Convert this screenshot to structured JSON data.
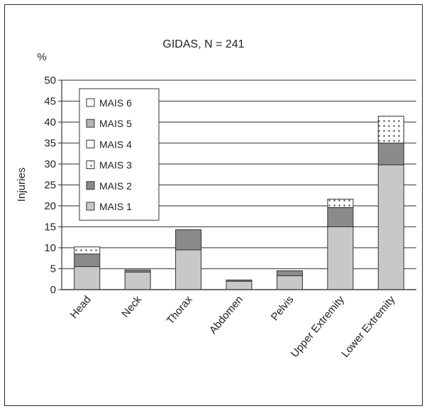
{
  "chart_data": {
    "type": "bar",
    "stacked": true,
    "title": "GIDAS, N = 241",
    "y_unit_label": "%",
    "ylabel": "Injuries",
    "xlabel": "",
    "ylim": [
      0,
      50
    ],
    "yticks": [
      0,
      5,
      10,
      15,
      20,
      25,
      30,
      35,
      40,
      45,
      50
    ],
    "grid": true,
    "legend_position": "top-left",
    "categories": [
      "Head",
      "Neck",
      "Thorax",
      "Abdomen",
      "Pelvis",
      "Upper Extremity",
      "Lower Extremity"
    ],
    "series": [
      {
        "name": "MAIS 1",
        "values": [
          5.5,
          4.2,
          9.5,
          2.0,
          3.3,
          15.0,
          29.8
        ],
        "color": "#c8c8c8",
        "pattern": "none"
      },
      {
        "name": "MAIS 2",
        "values": [
          3.0,
          0.5,
          4.8,
          0.3,
          1.2,
          4.6,
          5.2
        ],
        "color": "#8a8a8a",
        "pattern": "none"
      },
      {
        "name": "MAIS 3",
        "values": [
          1.7,
          0.0,
          0.0,
          0.0,
          0.0,
          2.0,
          6.4
        ],
        "color": "#ffffff",
        "pattern": "dots"
      },
      {
        "name": "MAIS 4",
        "values": [
          0,
          0,
          0,
          0,
          0,
          0,
          0
        ],
        "color": "#ffffff",
        "pattern": "none"
      },
      {
        "name": "MAIS 5",
        "values": [
          0,
          0,
          0,
          0,
          0,
          0,
          0
        ],
        "color": "#b4b4b4",
        "pattern": "none"
      },
      {
        "name": "MAIS 6",
        "values": [
          0,
          0,
          0,
          0,
          0,
          0,
          0
        ],
        "color": "#ffffff",
        "pattern": "none"
      }
    ],
    "legend_order": [
      "MAIS 6",
      "MAIS 5",
      "MAIS 4",
      "MAIS 3",
      "MAIS 2",
      "MAIS 1"
    ]
  }
}
